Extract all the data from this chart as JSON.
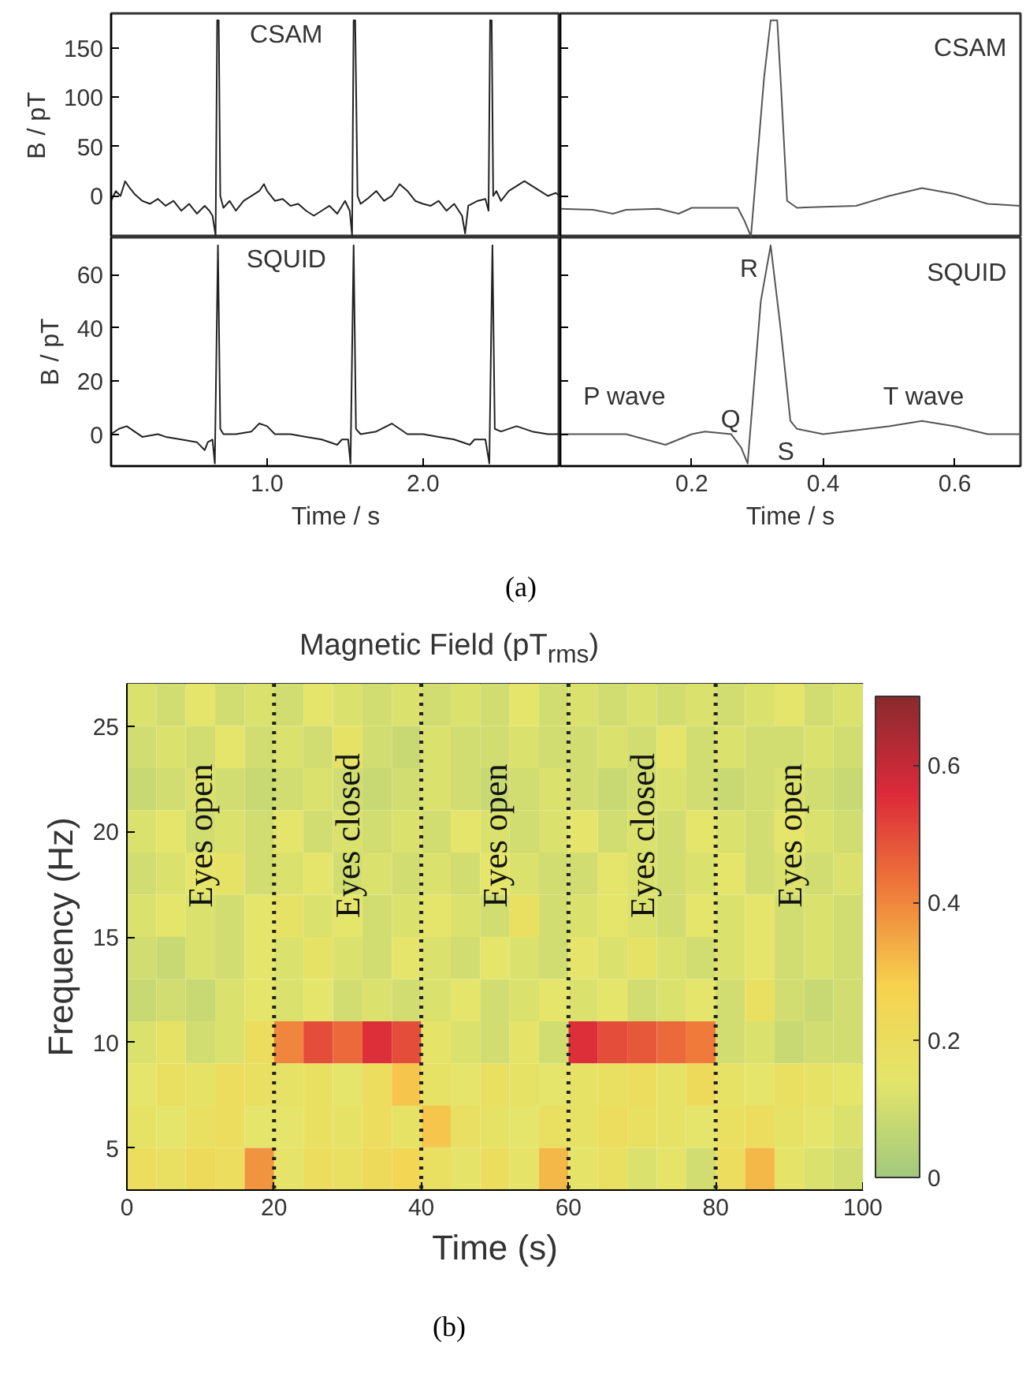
{
  "chart_data": [
    {
      "type": "line",
      "ylabel": "B / pT",
      "xlim": [
        0,
        2.88
      ],
      "ylim": [
        -42,
        185
      ],
      "yticks": [
        0,
        50,
        100,
        150
      ],
      "tick_labels": "y",
      "line_style": "solid",
      "series": [
        {
          "name": "CSAM",
          "color": "#222222",
          "x": [
            0.0,
            0.03,
            0.06,
            0.09,
            0.12,
            0.15,
            0.2,
            0.25,
            0.3,
            0.35,
            0.4,
            0.45,
            0.5,
            0.55,
            0.6,
            0.63,
            0.65,
            0.67,
            0.68,
            0.69,
            0.7,
            0.72,
            0.76,
            0.8,
            0.85,
            0.9,
            0.95,
            0.98,
            1.0,
            1.05,
            1.1,
            1.15,
            1.2,
            1.25,
            1.3,
            1.35,
            1.4,
            1.45,
            1.5,
            1.53,
            1.545,
            1.555,
            1.565,
            1.58,
            1.6,
            1.65,
            1.7,
            1.75,
            1.8,
            1.85,
            1.9,
            1.95,
            2.0,
            2.05,
            2.1,
            2.15,
            2.2,
            2.25,
            2.27,
            2.29,
            2.35,
            2.4,
            2.42,
            2.43,
            2.44,
            2.45,
            2.47,
            2.5,
            2.55,
            2.6,
            2.65,
            2.7,
            2.75,
            2.8,
            2.85,
            2.88
          ],
          "values": [
            -5,
            5,
            0,
            15,
            8,
            2,
            -5,
            -8,
            -3,
            -10,
            -5,
            -15,
            -8,
            -18,
            -10,
            -15,
            -20,
            -40,
            178,
            178,
            0,
            -12,
            -5,
            -15,
            -5,
            0,
            5,
            12,
            5,
            -5,
            -3,
            -10,
            -8,
            -15,
            -20,
            -15,
            -10,
            -18,
            -5,
            -15,
            -40,
            178,
            178,
            0,
            -8,
            -2,
            5,
            -5,
            0,
            12,
            5,
            -5,
            -8,
            -10,
            -5,
            -15,
            -8,
            -20,
            -38,
            -10,
            -5,
            -3,
            -15,
            178,
            178,
            0,
            5,
            -5,
            5,
            10,
            15,
            10,
            5,
            0,
            3,
            0
          ]
        }
      ]
    },
    {
      "type": "line",
      "xlim": [
        0,
        0.7
      ],
      "ylim": [
        -42,
        185
      ],
      "yticks": [
        0,
        50,
        100,
        150
      ],
      "tick_labels": false,
      "line_style": "solid",
      "series": [
        {
          "name": "CSAM",
          "color": "#555555",
          "x": [
            0.0,
            0.05,
            0.08,
            0.1,
            0.15,
            0.18,
            0.2,
            0.25,
            0.27,
            0.28,
            0.29,
            0.31,
            0.32,
            0.33,
            0.335,
            0.345,
            0.36,
            0.4,
            0.45,
            0.5,
            0.55,
            0.6,
            0.65,
            0.7
          ],
          "values": [
            -13,
            -14,
            -18,
            -14,
            -13,
            -18,
            -12,
            -12,
            -12,
            -25,
            -41,
            120,
            178,
            178,
            120,
            -5,
            -12,
            -11,
            -10,
            0,
            8,
            2,
            -8,
            -10
          ]
        }
      ]
    },
    {
      "type": "line",
      "ylabel": "B / pT",
      "xlabel": "Time / s",
      "xlim": [
        0,
        2.88
      ],
      "ylim": [
        -12,
        74
      ],
      "xticks": [
        {
          "value": 1,
          "label": "1.0"
        },
        {
          "value": 2,
          "label": "2.0"
        }
      ],
      "yticks": [
        0,
        20,
        40,
        60
      ],
      "line_style": "solid",
      "series": [
        {
          "name": "SQUID",
          "color": "#222222",
          "x": [
            0.0,
            0.05,
            0.1,
            0.15,
            0.2,
            0.3,
            0.35,
            0.45,
            0.55,
            0.6,
            0.62,
            0.65,
            0.665,
            0.685,
            0.7,
            0.72,
            0.8,
            0.9,
            0.95,
            1.0,
            1.05,
            1.15,
            1.25,
            1.35,
            1.45,
            1.48,
            1.52,
            1.535,
            1.555,
            1.57,
            1.6,
            1.7,
            1.8,
            1.85,
            1.9,
            2.0,
            2.1,
            2.2,
            2.3,
            2.33,
            2.4,
            2.425,
            2.445,
            2.46,
            2.5,
            2.6,
            2.7,
            2.8,
            2.88
          ],
          "values": [
            0,
            2,
            3,
            1,
            -1,
            0,
            -1,
            -2,
            -3,
            -6,
            -3,
            -2,
            -11,
            71,
            2,
            0,
            0,
            1,
            4,
            3,
            0,
            0,
            -1,
            -2,
            -4,
            -2,
            -2,
            -11,
            71,
            2,
            0,
            1,
            4,
            2,
            0,
            0,
            -1,
            -2,
            -4,
            -2,
            -2,
            -11,
            71,
            2,
            1,
            3,
            1,
            0,
            0
          ]
        }
      ]
    },
    {
      "type": "line",
      "xlabel": "Time / s",
      "xlim": [
        0,
        0.7
      ],
      "ylim": [
        -12,
        74
      ],
      "xticks": [
        0.2,
        0.4,
        0.6
      ],
      "yticks": [
        0,
        20,
        40,
        60
      ],
      "tick_labels": "x",
      "line_style": "solid",
      "annotations": [
        "R",
        "P wave",
        "Q",
        "S",
        "T wave",
        "(a)"
      ],
      "series": [
        {
          "name": "SQUID",
          "color": "#555555",
          "x": [
            0.0,
            0.1,
            0.13,
            0.16,
            0.2,
            0.22,
            0.26,
            0.275,
            0.285,
            0.305,
            0.32,
            0.335,
            0.35,
            0.36,
            0.4,
            0.5,
            0.55,
            0.6,
            0.65,
            0.7
          ],
          "values": [
            0,
            0,
            -2,
            -4,
            0,
            1,
            0,
            -5,
            -11,
            50,
            71,
            40,
            5,
            2,
            0,
            3,
            5,
            3,
            0,
            0
          ]
        }
      ]
    },
    {
      "type": "heatmap",
      "title": "Magnetic Field (pT$_{rms}$)",
      "xlabel": "Time (s)",
      "ylabel": "Frequency (Hz)",
      "xlim": [
        0,
        100
      ],
      "ylim": [
        3,
        27
      ],
      "xticks": [
        0,
        20,
        40,
        60,
        80,
        100
      ],
      "yticks": [
        5,
        10,
        15,
        20,
        25
      ],
      "clim": [
        0,
        0.7
      ],
      "cticks": [
        0,
        0.2,
        0.4,
        0.6
      ],
      "colors": [
        "#a3c97e",
        "#e4e56a",
        "#f6d24e",
        "#ef7a3a",
        "#dc2a3a",
        "#8b2a2e"
      ],
      "x": [
        2,
        6,
        10,
        14,
        18,
        22,
        26,
        30,
        34,
        38,
        42,
        46,
        50,
        54,
        58,
        62,
        66,
        70,
        74,
        78,
        82,
        86,
        90,
        94,
        98
      ],
      "y": [
        26,
        24,
        22,
        20,
        18,
        16,
        14,
        12,
        10,
        8,
        6,
        4
      ],
      "cells": [
        [
          0.12,
          0.1,
          0.14,
          0.1,
          0.12,
          0.1,
          0.14,
          0.12,
          0.1,
          0.12,
          0.1,
          0.12,
          0.1,
          0.14,
          0.1,
          0.12,
          0.1,
          0.12,
          0.1,
          0.12,
          0.1,
          0.12,
          0.14,
          0.1,
          0.12
        ],
        [
          0.1,
          0.12,
          0.1,
          0.14,
          0.1,
          0.12,
          0.1,
          0.16,
          0.1,
          0.08,
          0.12,
          0.1,
          0.1,
          0.12,
          0.1,
          0.1,
          0.12,
          0.1,
          0.14,
          0.1,
          0.12,
          0.1,
          0.1,
          0.12,
          0.1
        ],
        [
          0.08,
          0.1,
          0.12,
          0.1,
          0.08,
          0.1,
          0.12,
          0.1,
          0.08,
          0.1,
          0.12,
          0.1,
          0.08,
          0.1,
          0.12,
          0.1,
          0.08,
          0.1,
          0.12,
          0.1,
          0.08,
          0.1,
          0.12,
          0.1,
          0.08
        ],
        [
          0.12,
          0.14,
          0.1,
          0.12,
          0.1,
          0.14,
          0.1,
          0.12,
          0.1,
          0.12,
          0.1,
          0.14,
          0.12,
          0.1,
          0.12,
          0.14,
          0.1,
          0.12,
          0.1,
          0.14,
          0.12,
          0.1,
          0.14,
          0.12,
          0.1
        ],
        [
          0.1,
          0.12,
          0.14,
          0.16,
          0.1,
          0.12,
          0.14,
          0.1,
          0.12,
          0.1,
          0.12,
          0.1,
          0.14,
          0.12,
          0.1,
          0.1,
          0.14,
          0.12,
          0.1,
          0.12,
          0.14,
          0.1,
          0.12,
          0.1,
          0.12
        ],
        [
          0.12,
          0.14,
          0.12,
          0.1,
          0.14,
          0.16,
          0.12,
          0.14,
          0.1,
          0.12,
          0.14,
          0.12,
          0.1,
          0.18,
          0.1,
          0.12,
          0.14,
          0.12,
          0.1,
          0.14,
          0.12,
          0.14,
          0.1,
          0.12,
          0.1
        ],
        [
          0.1,
          0.08,
          0.12,
          0.1,
          0.14,
          0.12,
          0.16,
          0.12,
          0.1,
          0.14,
          0.12,
          0.1,
          0.14,
          0.12,
          0.1,
          0.14,
          0.12,
          0.16,
          0.12,
          0.1,
          0.12,
          0.14,
          0.1,
          0.12,
          0.1
        ],
        [
          0.08,
          0.1,
          0.08,
          0.12,
          0.14,
          0.12,
          0.14,
          0.1,
          0.12,
          0.1,
          0.12,
          0.14,
          0.1,
          0.12,
          0.14,
          0.12,
          0.14,
          0.1,
          0.12,
          0.14,
          0.1,
          0.18,
          0.1,
          0.08,
          0.1
        ],
        [
          0.12,
          0.16,
          0.1,
          0.12,
          0.2,
          0.4,
          0.5,
          0.45,
          0.55,
          0.5,
          0.15,
          0.12,
          0.1,
          0.15,
          0.1,
          0.55,
          0.5,
          0.48,
          0.45,
          0.42,
          0.1,
          0.12,
          0.08,
          0.1,
          0.1
        ],
        [
          0.14,
          0.18,
          0.16,
          0.2,
          0.18,
          0.16,
          0.18,
          0.14,
          0.2,
          0.3,
          0.16,
          0.14,
          0.18,
          0.16,
          0.14,
          0.16,
          0.18,
          0.2,
          0.16,
          0.22,
          0.16,
          0.14,
          0.18,
          0.16,
          0.14
        ],
        [
          0.16,
          0.14,
          0.18,
          0.2,
          0.14,
          0.14,
          0.18,
          0.16,
          0.2,
          0.16,
          0.3,
          0.18,
          0.16,
          0.14,
          0.18,
          0.16,
          0.2,
          0.18,
          0.16,
          0.14,
          0.18,
          0.2,
          0.16,
          0.14,
          0.12
        ],
        [
          0.2,
          0.18,
          0.22,
          0.2,
          0.38,
          0.15,
          0.2,
          0.18,
          0.22,
          0.25,
          0.18,
          0.15,
          0.2,
          0.15,
          0.32,
          0.15,
          0.18,
          0.12,
          0.15,
          0.1,
          0.2,
          0.32,
          0.15,
          0.12,
          0.1
        ]
      ],
      "ref_lines": [
        {
          "axis": "x",
          "value": 20,
          "line_style": "dotted"
        },
        {
          "axis": "x",
          "value": 40,
          "line_style": "dotted"
        },
        {
          "axis": "x",
          "value": 60,
          "line_style": "dotted"
        },
        {
          "axis": "x",
          "value": 80,
          "line_style": "dotted"
        }
      ],
      "annotations": [
        "Eyes open",
        "Eyes closed",
        "Eyes open",
        "Eyes closed",
        "Eyes open",
        "(b)"
      ]
    }
  ]
}
